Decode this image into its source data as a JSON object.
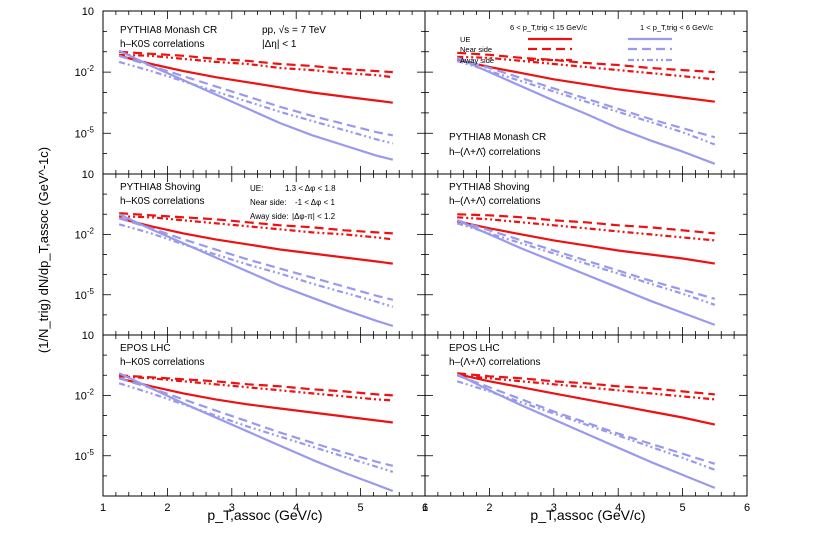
{
  "colors": {
    "high": "#ee1111",
    "low": "#9999ee",
    "axis": "#000000"
  },
  "figure": {
    "ylabel": "(1/N_trig) dN/dp_T,assoc (GeV^-1c)",
    "xlabels": [
      "p_T,assoc (GeV/c)",
      "p_T,assoc (GeV/c)"
    ]
  },
  "legend": {
    "high_header": "6 < p_T,trig < 15 GeV/c",
    "low_header": "1 < p_T,trig < 6 GeV/c",
    "entries": [
      "UE",
      "Near side",
      "Away side"
    ]
  },
  "region_defs": {
    "ue": "UE:",
    "ue_range": "1.3 < Δφ < 1.8",
    "near": "Near side:",
    "near_range": "-1 < Δφ < 1",
    "away": "Away side:",
    "away_range": "|Δφ-π| < 1.2"
  },
  "system_label": "pp, √s = 7 TeV",
  "eta_label": "|Δη| < 1",
  "chart_data": [
    {
      "panel": "top-left",
      "type": "line",
      "generator": "PYTHIA8 Monash CR",
      "particle": "h–K0S correlations",
      "xlim": [
        1,
        6
      ],
      "ylim_log10": [
        -7,
        1
      ],
      "xticks": [
        "1",
        "2",
        "3",
        "4",
        "5",
        "6"
      ],
      "yticks": [
        "10",
        "10^-2",
        "10^-5"
      ],
      "x": [
        1.25,
        1.75,
        2.25,
        2.75,
        3.25,
        3.75,
        4.25,
        4.75,
        5.25,
        5.5
      ],
      "series": [
        {
          "name": "UE, 6<pT,trig<15",
          "values_log10": [
            -1.2,
            -1.6,
            -1.95,
            -2.25,
            -2.5,
            -2.75,
            -3.0,
            -3.2,
            -3.4,
            -3.5
          ]
        },
        {
          "name": "Near side, 6<pT,trig<15",
          "values_log10": [
            -1.0,
            -1.1,
            -1.2,
            -1.35,
            -1.45,
            -1.6,
            -1.7,
            -1.85,
            -1.95,
            -2.0
          ]
        },
        {
          "name": "Away side, 6<pT,trig<15",
          "values_log10": [
            -1.15,
            -1.2,
            -1.35,
            -1.5,
            -1.6,
            -1.8,
            -1.9,
            -2.05,
            -2.15,
            -2.25
          ]
        },
        {
          "name": "UE, 1<pT,trig<6",
          "values_log10": [
            -0.95,
            -1.7,
            -2.4,
            -3.1,
            -3.8,
            -4.5,
            -5.1,
            -5.6,
            -6.1,
            -6.3
          ]
        },
        {
          "name": "Near side, 1<pT,trig<6",
          "values_log10": [
            -1.2,
            -1.7,
            -2.2,
            -2.7,
            -3.2,
            -3.7,
            -4.15,
            -4.55,
            -4.95,
            -5.1
          ]
        },
        {
          "name": "Away side, 1<pT,trig<6",
          "values_log10": [
            -1.5,
            -1.95,
            -2.45,
            -2.95,
            -3.45,
            -3.95,
            -4.4,
            -4.85,
            -5.3,
            -5.5
          ]
        }
      ]
    },
    {
      "panel": "top-right",
      "type": "line",
      "generator": "PYTHIA8 Monash CR",
      "particle": "h–(Λ+Λ̄) correlations",
      "xlim": [
        1,
        6
      ],
      "ylim_log10": [
        -7,
        1
      ],
      "xticks": [
        "1",
        "2",
        "3",
        "4",
        "5",
        "6"
      ],
      "yticks": [],
      "x": [
        1.5,
        2.0,
        2.5,
        3.0,
        3.5,
        4.0,
        4.5,
        5.0,
        5.5
      ],
      "series": [
        {
          "name": "UE, 6<pT,trig<15",
          "values_log10": [
            -1.4,
            -1.75,
            -2.05,
            -2.35,
            -2.6,
            -2.85,
            -3.05,
            -3.25,
            -3.45
          ]
        },
        {
          "name": "Near side, 6<pT,trig<15",
          "values_log10": [
            -1.05,
            -1.15,
            -1.3,
            -1.4,
            -1.55,
            -1.65,
            -1.8,
            -1.9,
            -2.0
          ]
        },
        {
          "name": "Away side, 6<pT,trig<15",
          "values_log10": [
            -1.25,
            -1.3,
            -1.45,
            -1.6,
            -1.75,
            -1.9,
            -2.05,
            -2.2,
            -2.35
          ]
        },
        {
          "name": "UE, 1<pT,trig<6",
          "values_log10": [
            -1.3,
            -2.0,
            -2.7,
            -3.4,
            -4.05,
            -4.75,
            -5.35,
            -5.9,
            -6.5
          ]
        },
        {
          "name": "Near side, 1<pT,trig<6",
          "values_log10": [
            -1.3,
            -1.8,
            -2.3,
            -2.8,
            -3.3,
            -3.8,
            -4.3,
            -4.75,
            -5.2
          ]
        },
        {
          "name": "Away side, 1<pT,trig<6",
          "values_log10": [
            -1.45,
            -1.95,
            -2.45,
            -2.95,
            -3.45,
            -3.95,
            -4.45,
            -4.95,
            -5.55
          ]
        }
      ]
    },
    {
      "panel": "middle-left",
      "type": "line",
      "generator": "PYTHIA8  Shoving",
      "particle": "h–K0S correlations",
      "xlim": [
        1,
        6
      ],
      "ylim_log10": [
        -7,
        1
      ],
      "xticks": [
        "1",
        "2",
        "3",
        "4",
        "5",
        "6"
      ],
      "yticks": [
        "10",
        "10^-2",
        "10^-5"
      ],
      "x": [
        1.25,
        1.75,
        2.25,
        2.75,
        3.25,
        3.75,
        4.25,
        4.75,
        5.25,
        5.5
      ],
      "series": [
        {
          "name": "UE, 6<pT,trig<15",
          "values_log10": [
            -1.2,
            -1.6,
            -1.95,
            -2.25,
            -2.5,
            -2.75,
            -2.95,
            -3.15,
            -3.35,
            -3.45
          ]
        },
        {
          "name": "Near side, 6<pT,trig<15",
          "values_log10": [
            -0.95,
            -1.05,
            -1.15,
            -1.25,
            -1.4,
            -1.55,
            -1.65,
            -1.8,
            -1.9,
            -1.95
          ]
        },
        {
          "name": "Away side, 6<pT,trig<15",
          "values_log10": [
            -1.1,
            -1.15,
            -1.3,
            -1.45,
            -1.6,
            -1.75,
            -1.9,
            -2.0,
            -2.15,
            -2.25
          ]
        },
        {
          "name": "UE, 1<pT,trig<6",
          "values_log10": [
            -1.0,
            -1.75,
            -2.45,
            -3.15,
            -3.85,
            -4.55,
            -5.15,
            -5.75,
            -6.3,
            -6.55
          ]
        },
        {
          "name": "Near side, 1<pT,trig<6",
          "values_log10": [
            -1.2,
            -1.7,
            -2.25,
            -2.75,
            -3.25,
            -3.7,
            -4.15,
            -4.6,
            -5.05,
            -5.25
          ]
        },
        {
          "name": "Away side, 1<pT,trig<6",
          "values_log10": [
            -1.5,
            -1.95,
            -2.5,
            -3.0,
            -3.5,
            -3.95,
            -4.45,
            -4.9,
            -5.35,
            -5.6
          ]
        }
      ]
    },
    {
      "panel": "middle-right",
      "type": "line",
      "generator": "PYTHIA8  Shoving",
      "particle": "h–(Λ+Λ̄) correlations",
      "xlim": [
        1,
        6
      ],
      "ylim_log10": [
        -7,
        1
      ],
      "xticks": [
        "1",
        "2",
        "3",
        "4",
        "5",
        "6"
      ],
      "yticks": [],
      "x": [
        1.5,
        2.0,
        2.5,
        3.0,
        3.5,
        4.0,
        4.5,
        5.0,
        5.5
      ],
      "series": [
        {
          "name": "UE, 6<pT,trig<15",
          "values_log10": [
            -1.35,
            -1.7,
            -2.0,
            -2.3,
            -2.55,
            -2.8,
            -3.0,
            -3.2,
            -3.45
          ]
        },
        {
          "name": "Near side, 6<pT,trig<15",
          "values_log10": [
            -1.0,
            -1.05,
            -1.15,
            -1.3,
            -1.4,
            -1.55,
            -1.65,
            -1.8,
            -1.95
          ]
        },
        {
          "name": "Away side, 6<pT,trig<15",
          "values_log10": [
            -1.15,
            -1.25,
            -1.4,
            -1.55,
            -1.7,
            -1.85,
            -2.0,
            -2.15,
            -2.3
          ]
        },
        {
          "name": "UE, 1<pT,trig<6",
          "values_log10": [
            -1.3,
            -2.0,
            -2.7,
            -3.35,
            -4.0,
            -4.65,
            -5.3,
            -5.9,
            -6.5
          ]
        },
        {
          "name": "Near side, 1<pT,trig<6",
          "values_log10": [
            -1.3,
            -1.8,
            -2.3,
            -2.8,
            -3.3,
            -3.8,
            -4.3,
            -4.75,
            -5.2
          ]
        },
        {
          "name": "Away side, 1<pT,trig<6",
          "values_log10": [
            -1.45,
            -1.95,
            -2.45,
            -2.95,
            -3.45,
            -3.95,
            -4.45,
            -4.95,
            -5.5
          ]
        }
      ]
    },
    {
      "panel": "bottom-left",
      "type": "line",
      "generator": "EPOS LHC",
      "particle": "h–K0S correlations",
      "xlim": [
        1,
        6
      ],
      "ylim_log10": [
        -7,
        1
      ],
      "xticks": [
        "1",
        "2",
        "3",
        "4",
        "5",
        "6"
      ],
      "yticks": [
        "10",
        "10^-2",
        "10^-5"
      ],
      "x": [
        1.25,
        1.75,
        2.25,
        2.75,
        3.25,
        3.75,
        4.25,
        4.75,
        5.25,
        5.5
      ],
      "series": [
        {
          "name": "UE, 6<pT,trig<15",
          "values_log10": [
            -1.15,
            -1.55,
            -1.9,
            -2.2,
            -2.45,
            -2.65,
            -2.85,
            -3.05,
            -3.25,
            -3.35
          ]
        },
        {
          "name": "Near side, 6<pT,trig<15",
          "values_log10": [
            -1.0,
            -1.1,
            -1.2,
            -1.3,
            -1.45,
            -1.55,
            -1.7,
            -1.8,
            -1.95,
            -2.0
          ]
        },
        {
          "name": "Away side, 6<pT,trig<15",
          "values_log10": [
            -1.05,
            -1.15,
            -1.3,
            -1.45,
            -1.6,
            -1.75,
            -1.9,
            -2.05,
            -2.2,
            -2.25
          ]
        },
        {
          "name": "UE, 1<pT,trig<6",
          "values_log10": [
            -0.9,
            -1.65,
            -2.4,
            -3.1,
            -3.8,
            -4.5,
            -5.2,
            -5.85,
            -6.45,
            -6.75
          ]
        },
        {
          "name": "Near side, 1<pT,trig<6",
          "values_log10": [
            -1.15,
            -1.65,
            -2.2,
            -2.75,
            -3.3,
            -3.85,
            -4.35,
            -4.85,
            -5.3,
            -5.5
          ]
        },
        {
          "name": "Away side, 1<pT,trig<6",
          "values_log10": [
            -1.4,
            -1.9,
            -2.45,
            -3.0,
            -3.55,
            -4.05,
            -4.55,
            -5.05,
            -5.55,
            -5.8
          ]
        }
      ]
    },
    {
      "panel": "bottom-right",
      "type": "line",
      "generator": "EPOS LHC",
      "particle": "h–(Λ+Λ̄) correlations",
      "xlim": [
        1,
        6
      ],
      "ylim_log10": [
        -7,
        1
      ],
      "xticks": [
        "1",
        "2",
        "3",
        "4",
        "5",
        "6"
      ],
      "yticks": [],
      "x": [
        1.5,
        2.0,
        2.5,
        3.0,
        3.5,
        4.0,
        4.5,
        5.0,
        5.5
      ],
      "series": [
        {
          "name": "UE, 6<pT,trig<15",
          "values_log10": [
            -0.95,
            -1.3,
            -1.6,
            -1.9,
            -2.2,
            -2.5,
            -2.8,
            -3.1,
            -3.45
          ]
        },
        {
          "name": "Near side, 6<pT,trig<15",
          "values_log10": [
            -0.9,
            -1.05,
            -1.15,
            -1.3,
            -1.4,
            -1.55,
            -1.65,
            -1.8,
            -1.95
          ]
        },
        {
          "name": "Away side, 6<pT,trig<15",
          "values_log10": [
            -1.0,
            -1.15,
            -1.3,
            -1.45,
            -1.6,
            -1.75,
            -1.9,
            -2.05,
            -2.2
          ]
        },
        {
          "name": "UE, 1<pT,trig<6",
          "values_log10": [
            -0.95,
            -1.75,
            -2.5,
            -3.2,
            -3.9,
            -4.6,
            -5.3,
            -5.95,
            -6.6
          ]
        },
        {
          "name": "Near side, 1<pT,trig<6",
          "values_log10": [
            -1.0,
            -1.6,
            -2.2,
            -2.8,
            -3.35,
            -3.9,
            -4.4,
            -4.9,
            -5.4
          ]
        },
        {
          "name": "Away side, 1<pT,trig<6",
          "values_log10": [
            -1.3,
            -1.8,
            -2.35,
            -2.9,
            -3.45,
            -4.0,
            -4.55,
            -5.1,
            -5.7
          ]
        }
      ]
    }
  ]
}
